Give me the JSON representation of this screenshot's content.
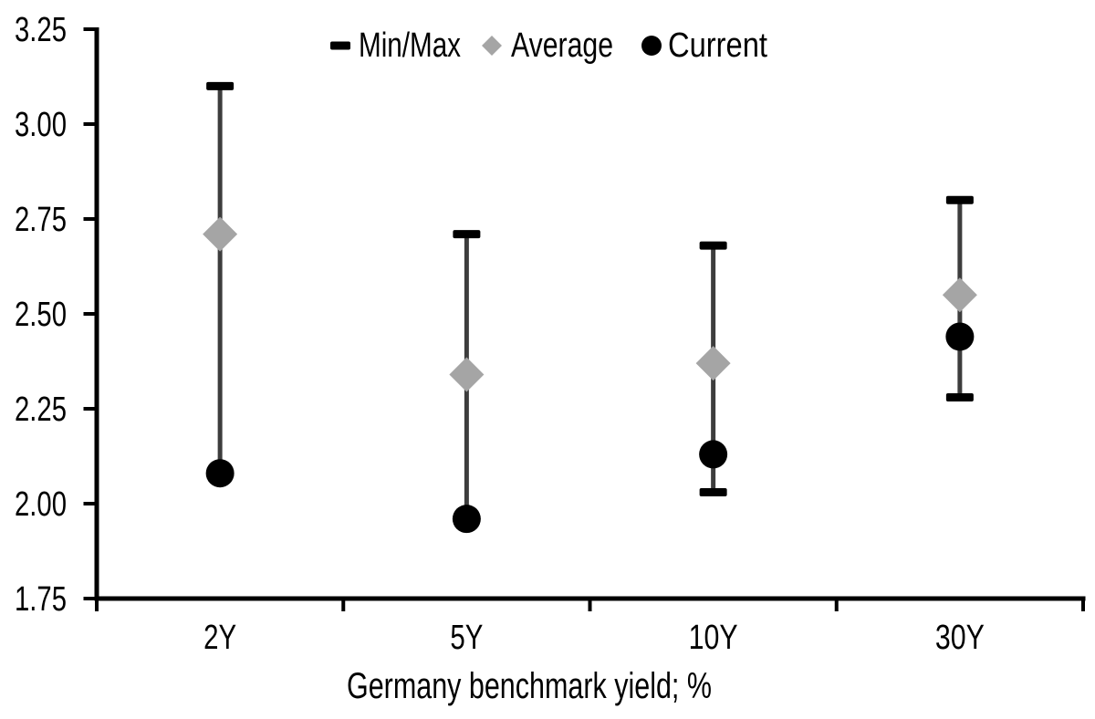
{
  "chart_data": {
    "type": "scatter",
    "subtype": "min-max-range-with-markers",
    "title": "",
    "xlabel": "Germany benchmark yield; %",
    "ylabel": "",
    "categories": [
      "2Y",
      "5Y",
      "10Y",
      "30Y"
    ],
    "series": [
      {
        "name": "Min/Max",
        "marker": "dash",
        "min": [
          2.08,
          1.96,
          2.03,
          2.28
        ],
        "max": [
          3.1,
          2.71,
          2.68,
          2.8
        ]
      },
      {
        "name": "Average",
        "marker": "diamond",
        "values": [
          2.71,
          2.34,
          2.37,
          2.55
        ]
      },
      {
        "name": "Current",
        "marker": "circle",
        "values": [
          2.08,
          1.96,
          2.13,
          2.44
        ]
      }
    ],
    "ylim": [
      1.75,
      3.25
    ],
    "ytick_step": 0.25,
    "ytick_labels": [
      "1.75",
      "2.00",
      "2.25",
      "2.50",
      "2.75",
      "3.00",
      "3.25"
    ],
    "grid": false,
    "legend_position": "top-center",
    "colors": {
      "whisker": "#3d3d3d",
      "cap": "#000000",
      "average": "#a5a5a5",
      "current": "#000000",
      "axis": "#000000",
      "text": "#000000"
    }
  }
}
